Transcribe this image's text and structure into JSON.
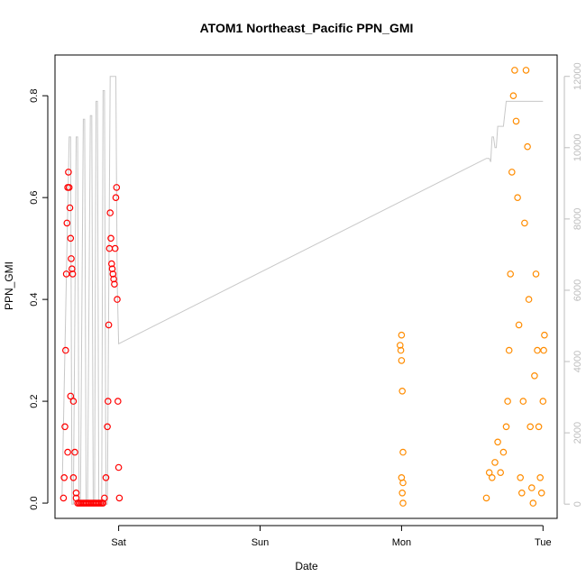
{
  "chart_data": {
    "type": "scatter",
    "title": "ATOM1 Northeast_Pacific PPN_GMI",
    "xlabel": "Date",
    "ylabel": "PPN_GMI",
    "x_ticks": [
      "Sat",
      "Sun",
      "Mon",
      "Tue"
    ],
    "x_tick_days": [
      1,
      2,
      3,
      4
    ],
    "xlim_days": [
      0.55,
      4.1
    ],
    "ylim": [
      -0.03,
      0.88
    ],
    "y_ticks": [
      0.0,
      0.2,
      0.4,
      0.6,
      0.8
    ],
    "y_tick_labels": [
      "0.0",
      "0.2",
      "0.4",
      "0.6",
      "0.8"
    ],
    "y2_ticks": [
      0,
      2000,
      4000,
      6000,
      8000,
      10000,
      12000
    ],
    "y2_tick_labels": [
      "0",
      "2000",
      "4000",
      "6000",
      "8000",
      "10000",
      "12000"
    ],
    "y2lim": [
      -400,
      12600
    ],
    "grid": false,
    "colors": {
      "series_a": "#ff0000",
      "series_b": "#ff8c00",
      "depth_line": "#c8c8c8",
      "axis": "#000000",
      "right_axis": "#bdbdbd"
    },
    "series": [
      {
        "marker": "open-circle",
        "color": "#ff0000",
        "x_days": [
          0.61,
          0.615,
          0.62,
          0.625,
          0.63,
          0.635,
          0.64,
          0.645,
          0.65,
          0.655,
          0.66,
          0.665,
          0.67,
          0.675,
          0.68,
          0.69,
          0.7,
          0.71,
          0.72,
          0.73,
          0.74,
          0.75,
          0.76,
          0.77,
          0.78,
          0.79,
          0.8,
          0.81,
          0.82,
          0.83,
          0.84,
          0.85,
          0.86,
          0.87,
          0.88,
          0.89,
          0.9,
          0.91,
          0.92,
          0.925,
          0.93,
          0.935,
          0.94,
          0.945,
          0.95,
          0.955,
          0.96,
          0.965,
          0.97,
          0.975,
          0.98,
          0.985,
          0.99,
          0.995,
          1.0,
          1.005,
          0.64,
          0.66,
          0.68,
          0.7
        ],
        "y": [
          0.01,
          0.05,
          0.15,
          0.3,
          0.45,
          0.55,
          0.62,
          0.65,
          0.62,
          0.58,
          0.52,
          0.48,
          0.46,
          0.45,
          0.2,
          0.1,
          0.02,
          0.0,
          0.0,
          0.0,
          0.0,
          0.0,
          0.0,
          0.0,
          0.0,
          0.0,
          0.0,
          0.0,
          0.0,
          0.0,
          0.0,
          0.0,
          0.0,
          0.0,
          0.0,
          0.0,
          0.01,
          0.05,
          0.15,
          0.2,
          0.35,
          0.5,
          0.57,
          0.52,
          0.47,
          0.46,
          0.45,
          0.44,
          0.43,
          0.5,
          0.6,
          0.62,
          0.4,
          0.2,
          0.07,
          0.01,
          0.1,
          0.21,
          0.05,
          0.01
        ]
      },
      {
        "marker": "open-circle",
        "color": "#ff8c00",
        "x_days": [
          2.995,
          3.0,
          3.005,
          3.01,
          3.0,
          3.005,
          3.01,
          2.99,
          3.0,
          3.01,
          3.6,
          3.62,
          3.64,
          3.66,
          3.68,
          3.7,
          3.72,
          3.74,
          3.75,
          3.76,
          3.77,
          3.78,
          3.79,
          3.8,
          3.81,
          3.82,
          3.83,
          3.84,
          3.85,
          3.86,
          3.87,
          3.88,
          3.89,
          3.9,
          3.91,
          3.92,
          3.93,
          3.94,
          3.95,
          3.96,
          3.97,
          3.98,
          3.99,
          4.0,
          4.005,
          4.01
        ],
        "y": [
          0.3,
          0.33,
          0.22,
          0.1,
          0.05,
          0.02,
          0.0,
          0.31,
          0.28,
          0.04,
          0.01,
          0.06,
          0.05,
          0.08,
          0.12,
          0.06,
          0.1,
          0.15,
          0.2,
          0.3,
          0.45,
          0.65,
          0.8,
          0.85,
          0.75,
          0.6,
          0.35,
          0.05,
          0.02,
          0.2,
          0.55,
          0.85,
          0.7,
          0.4,
          0.15,
          0.03,
          0.0,
          0.25,
          0.45,
          0.3,
          0.15,
          0.05,
          0.02,
          0.2,
          0.3,
          0.33
        ]
      }
    ],
    "depth_line": {
      "axis": "right",
      "x_days": [
        0.6,
        0.65,
        0.66,
        0.67,
        0.68,
        0.7,
        0.71,
        0.72,
        0.73,
        0.75,
        0.76,
        0.77,
        0.78,
        0.8,
        0.81,
        0.82,
        0.83,
        0.84,
        0.85,
        0.86,
        0.88,
        0.89,
        0.9,
        0.91,
        0.92,
        0.94,
        0.95,
        0.96,
        0.97,
        0.98,
        0.99,
        1.0,
        3.6,
        3.62,
        3.63,
        3.64,
        3.65,
        3.66,
        3.67,
        3.68,
        3.7,
        3.72,
        3.74,
        3.76,
        3.78,
        3.8,
        3.82,
        3.84,
        3.86,
        3.88,
        3.9,
        3.92,
        3.94,
        3.96,
        3.98,
        4.0
      ],
      "values": [
        200,
        10300,
        10300,
        0,
        0,
        10300,
        10300,
        0,
        0,
        10800,
        10800,
        0,
        0,
        10900,
        10900,
        0,
        0,
        11300,
        11300,
        0,
        0,
        11600,
        11600,
        0,
        0,
        12000,
        12000,
        12000,
        12000,
        12000,
        6200,
        4500,
        9700,
        9700,
        9600,
        10300,
        10300,
        10000,
        10000,
        10600,
        10600,
        10600,
        11300,
        11300,
        11300,
        11300,
        11300,
        11300,
        11300,
        11300,
        11300,
        11300,
        11300,
        11300,
        11300,
        11300
      ],
      "segment_note": "gap drawn as straight line Sat→Mon"
    }
  }
}
